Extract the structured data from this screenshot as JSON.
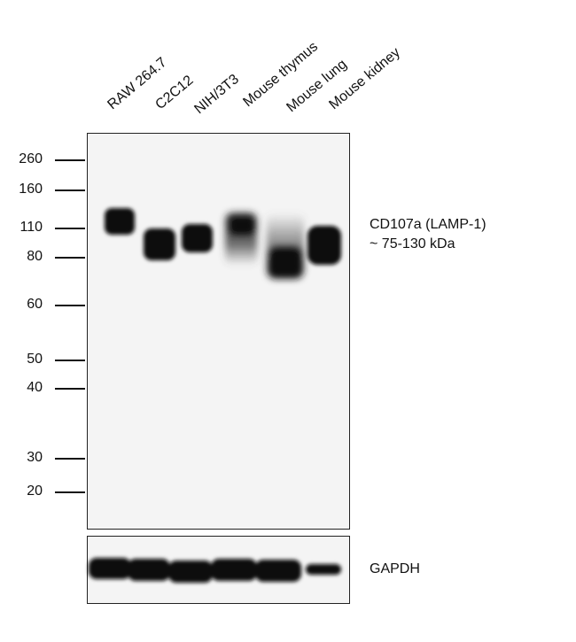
{
  "lanes": [
    "RAW 264.7",
    "C2C12",
    "NIH/3T3",
    "Mouse thymus",
    "Mouse lung",
    "Mouse kidney"
  ],
  "markers": [
    "260",
    "160",
    "110",
    "80",
    "60",
    "50",
    "40",
    "30",
    "20"
  ],
  "target": {
    "name": "CD107a (LAMP-1)",
    "size": "~ 75-130 kDa"
  },
  "loading_control": "GAPDH"
}
